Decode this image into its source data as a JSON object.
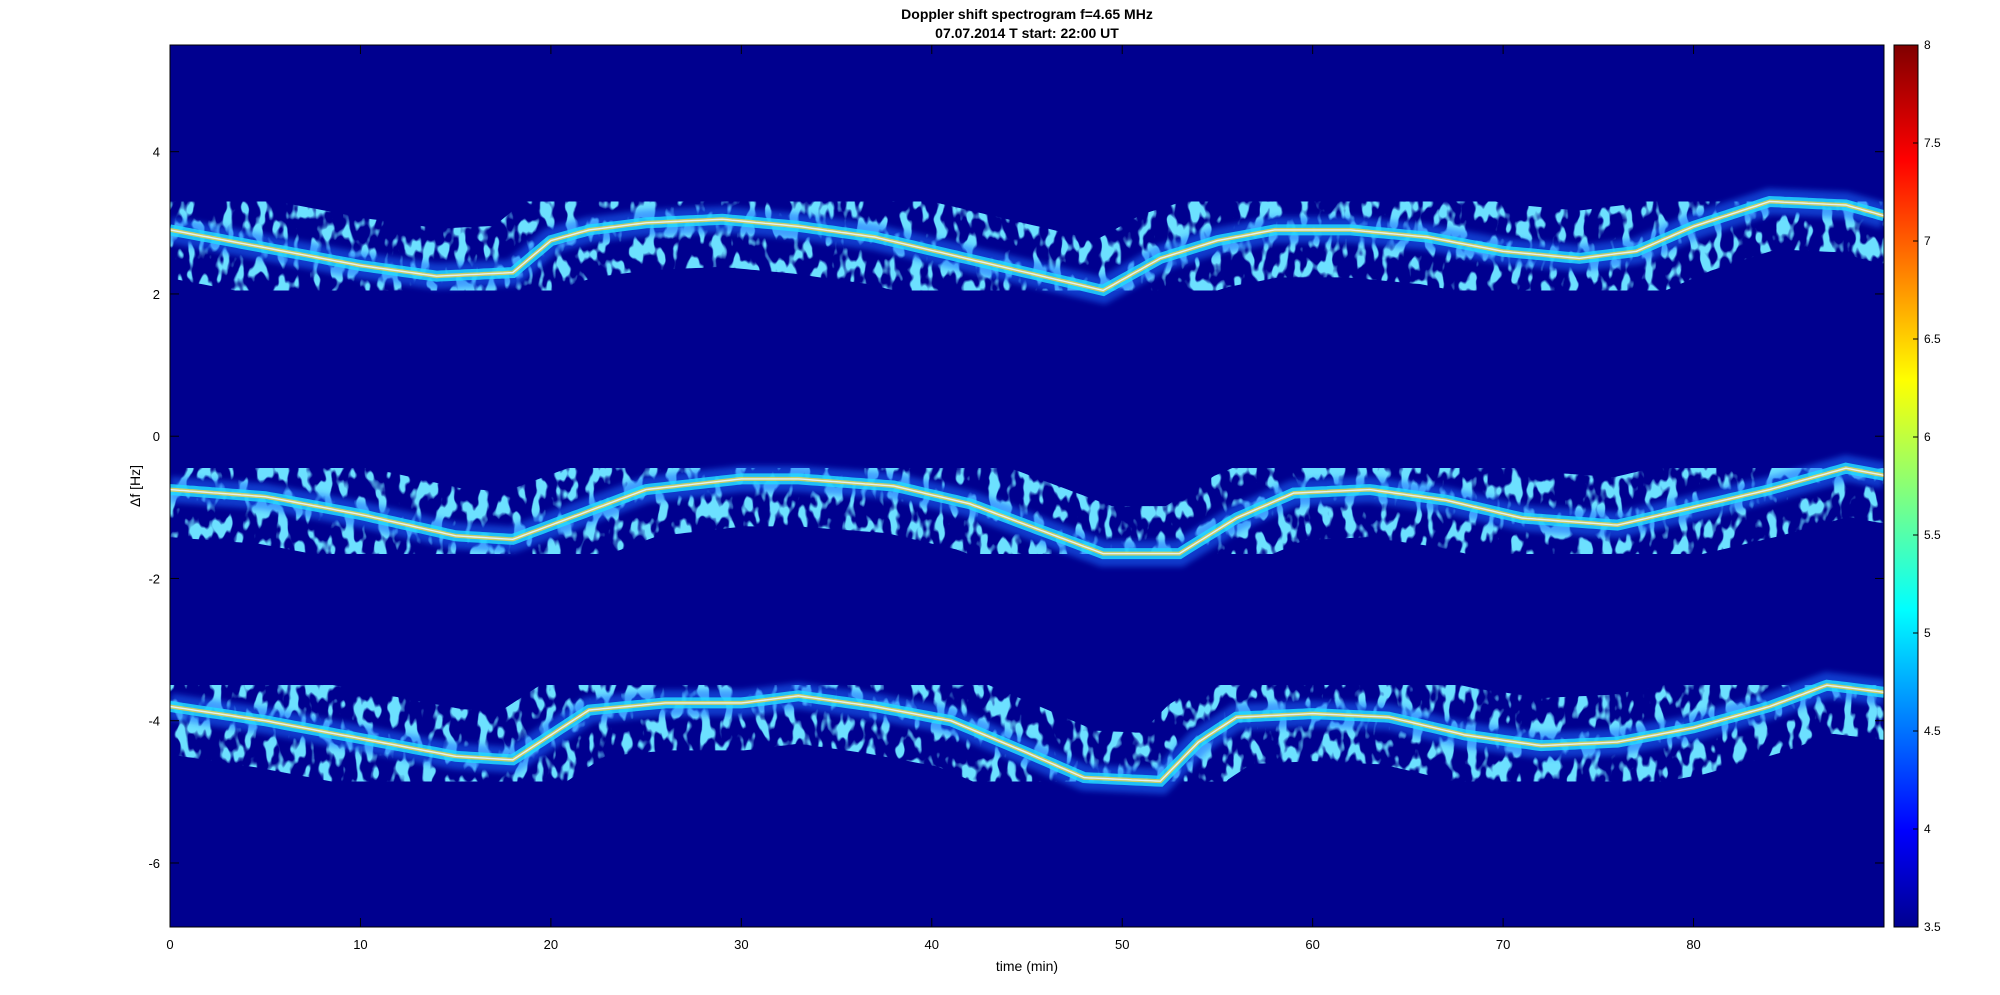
{
  "chart_data": {
    "type": "heatmap",
    "title": "Doppler shift spectrogram f=4.65 MHz",
    "subtitle": "07.07.2014   T start: 22:00 UT",
    "xlabel": "time (min)",
    "ylabel": "Δf [Hz]",
    "xlim": [
      0,
      90
    ],
    "ylim": [
      -6.9,
      5.5
    ],
    "x_ticks": [
      "0",
      "10",
      "20",
      "30",
      "40",
      "50",
      "60",
      "70",
      "80"
    ],
    "x_tick_values": [
      0,
      10,
      20,
      30,
      40,
      50,
      60,
      70,
      80
    ],
    "y_ticks": [
      "4",
      "2",
      "0",
      "-2",
      "-4",
      "-6"
    ],
    "y_tick_values": [
      4,
      2,
      0,
      -2,
      -4,
      -6
    ],
    "colorbar": {
      "min": 3.5,
      "max": 8,
      "ticks": [
        "8",
        "7.5",
        "7",
        "6.5",
        "6",
        "5.5",
        "5",
        "4.5",
        "4",
        "3.5"
      ],
      "tick_values": [
        8,
        7.5,
        7,
        6.5,
        6,
        5.5,
        5,
        4.5,
        4,
        3.5
      ],
      "colormap": "jet"
    },
    "background_color": "#00008f",
    "series": [
      {
        "x": [
          0,
          5,
          10,
          14,
          18,
          20,
          22,
          25,
          29,
          33,
          37,
          41,
          45,
          49,
          52,
          55,
          58,
          62,
          66,
          70,
          74,
          77,
          80,
          84,
          88,
          90
        ],
        "y": [
          2.9,
          2.65,
          2.4,
          2.25,
          2.3,
          2.75,
          2.9,
          3.0,
          3.05,
          2.95,
          2.8,
          2.55,
          2.3,
          2.05,
          2.5,
          2.75,
          2.9,
          2.9,
          2.8,
          2.6,
          2.5,
          2.6,
          2.95,
          3.3,
          3.25,
          3.1
        ]
      },
      {
        "x": [
          0,
          5,
          10,
          15,
          18,
          22,
          25,
          30,
          33,
          38,
          42,
          46,
          49,
          53,
          56,
          59,
          63,
          67,
          71,
          76,
          80,
          84,
          88,
          90
        ],
        "y": [
          -0.75,
          -0.85,
          -1.1,
          -1.4,
          -1.45,
          -1.05,
          -0.75,
          -0.6,
          -0.6,
          -0.7,
          -0.95,
          -1.35,
          -1.65,
          -1.65,
          -1.15,
          -0.8,
          -0.75,
          -0.9,
          -1.15,
          -1.25,
          -1.0,
          -0.75,
          -0.45,
          -0.55
        ]
      },
      {
        "x": [
          0,
          5,
          10,
          15,
          18,
          20,
          22,
          26,
          30,
          33,
          37,
          41,
          45,
          48,
          52,
          54,
          56,
          60,
          64,
          68,
          72,
          76,
          80,
          84,
          87,
          90
        ],
        "y": [
          -3.8,
          -4.0,
          -4.25,
          -4.5,
          -4.55,
          -4.2,
          -3.85,
          -3.75,
          -3.75,
          -3.65,
          -3.8,
          -4.0,
          -4.45,
          -4.8,
          -4.85,
          -4.3,
          -3.95,
          -3.9,
          -3.95,
          -4.2,
          -4.35,
          -4.3,
          -4.1,
          -3.8,
          -3.5,
          -3.6
        ]
      }
    ]
  }
}
